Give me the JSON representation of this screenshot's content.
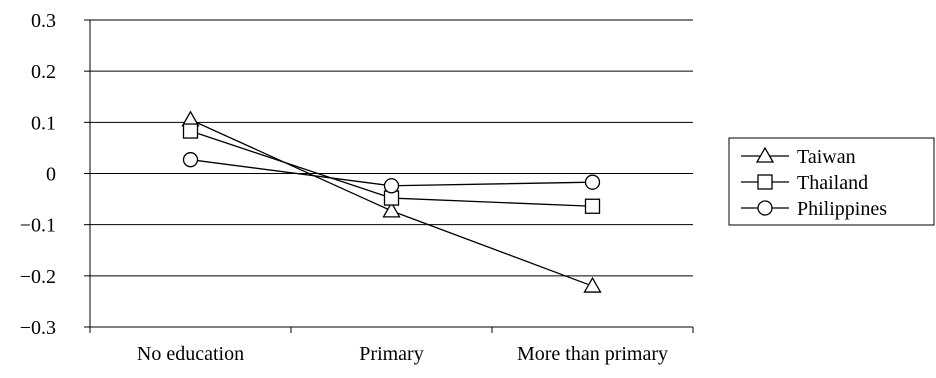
{
  "chart_data": {
    "type": "line",
    "title": "",
    "xlabel": "",
    "ylabel": "",
    "categories": [
      "No education",
      "Primary",
      "More than primary"
    ],
    "ylim": [
      -0.3,
      0.3
    ],
    "yticks": [
      0.3,
      0.2,
      0.1,
      0,
      -0.1,
      -0.2,
      -0.3
    ],
    "ytick_labels": [
      "0.3",
      "0.2",
      "0.1",
      "0",
      "−0.1",
      "−0.2",
      "−0.3"
    ],
    "grid": true,
    "legend": "right",
    "series": [
      {
        "name": "Taiwan",
        "marker": "triangle",
        "values": [
          0.105,
          -0.073,
          -0.22
        ]
      },
      {
        "name": "Thailand",
        "marker": "square",
        "values": [
          0.083,
          -0.048,
          -0.064
        ]
      },
      {
        "name": "Philippines",
        "marker": "circle",
        "values": [
          0.027,
          -0.024,
          -0.017
        ]
      }
    ]
  }
}
